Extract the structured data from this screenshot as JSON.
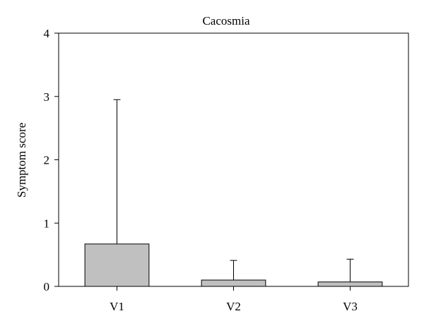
{
  "chart_data": {
    "type": "bar",
    "title": "Cacosmia",
    "xlabel": "",
    "ylabel": "Symptom score",
    "categories": [
      "V1",
      "V2",
      "V3"
    ],
    "values": [
      0.67,
      0.1,
      0.07
    ],
    "error_upper": [
      2.95,
      0.41,
      0.43
    ],
    "ylim": [
      0,
      4
    ],
    "yticks": [
      "0",
      "1",
      "2",
      "3",
      "4"
    ],
    "grid": false,
    "legend": "none",
    "colors": {
      "bar_fill": "#c0c0c0",
      "bar_stroke": "#000000"
    }
  }
}
